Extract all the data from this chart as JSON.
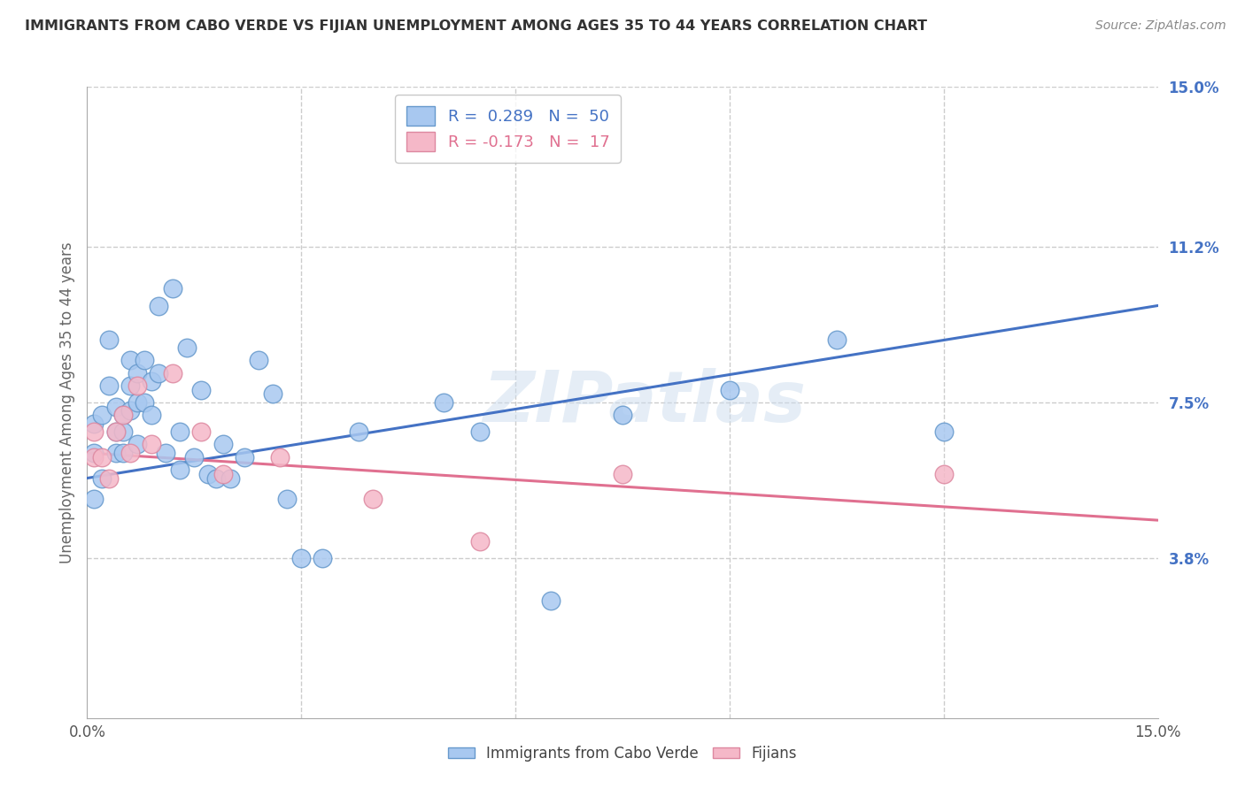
{
  "title": "IMMIGRANTS FROM CABO VERDE VS FIJIAN UNEMPLOYMENT AMONG AGES 35 TO 44 YEARS CORRELATION CHART",
  "source": "Source: ZipAtlas.com",
  "ylabel": "Unemployment Among Ages 35 to 44 years",
  "xlim": [
    0.0,
    0.15
  ],
  "ylim": [
    0.0,
    0.15
  ],
  "ytick_right_labels": [
    "3.8%",
    "7.5%",
    "11.2%",
    "15.0%"
  ],
  "ytick_right_positions": [
    0.038,
    0.075,
    0.112,
    0.15
  ],
  "blue_color": "#A8C8F0",
  "blue_edge_color": "#6699CC",
  "blue_line_color": "#4472C4",
  "pink_color": "#F5B8C8",
  "pink_edge_color": "#DD88A0",
  "pink_line_color": "#E07090",
  "background_color": "#FFFFFF",
  "grid_color": "#CCCCCC",
  "title_color": "#333333",
  "right_label_color": "#4472C4",
  "watermark": "ZIPatlas",
  "blue_line_x0": 0.0,
  "blue_line_y0": 0.057,
  "blue_line_x1": 0.15,
  "blue_line_y1": 0.098,
  "pink_line_x0": 0.0,
  "pink_line_y0": 0.063,
  "pink_line_x1": 0.15,
  "pink_line_y1": 0.047,
  "cabo_x": [
    0.001,
    0.001,
    0.001,
    0.002,
    0.002,
    0.003,
    0.003,
    0.004,
    0.004,
    0.004,
    0.005,
    0.005,
    0.005,
    0.006,
    0.006,
    0.006,
    0.007,
    0.007,
    0.007,
    0.008,
    0.008,
    0.009,
    0.009,
    0.01,
    0.01,
    0.011,
    0.012,
    0.013,
    0.013,
    0.014,
    0.015,
    0.016,
    0.017,
    0.018,
    0.019,
    0.02,
    0.022,
    0.024,
    0.026,
    0.028,
    0.03,
    0.033,
    0.038,
    0.05,
    0.055,
    0.065,
    0.075,
    0.09,
    0.105,
    0.12
  ],
  "cabo_y": [
    0.07,
    0.063,
    0.052,
    0.072,
    0.057,
    0.09,
    0.079,
    0.074,
    0.068,
    0.063,
    0.072,
    0.068,
    0.063,
    0.085,
    0.079,
    0.073,
    0.082,
    0.075,
    0.065,
    0.085,
    0.075,
    0.08,
    0.072,
    0.098,
    0.082,
    0.063,
    0.102,
    0.068,
    0.059,
    0.088,
    0.062,
    0.078,
    0.058,
    0.057,
    0.065,
    0.057,
    0.062,
    0.085,
    0.077,
    0.052,
    0.038,
    0.038,
    0.068,
    0.075,
    0.068,
    0.028,
    0.072,
    0.078,
    0.09,
    0.068
  ],
  "fijian_x": [
    0.001,
    0.001,
    0.002,
    0.003,
    0.004,
    0.005,
    0.006,
    0.007,
    0.009,
    0.012,
    0.016,
    0.019,
    0.027,
    0.04,
    0.055,
    0.075,
    0.12
  ],
  "fijian_y": [
    0.068,
    0.062,
    0.062,
    0.057,
    0.068,
    0.072,
    0.063,
    0.079,
    0.065,
    0.082,
    0.068,
    0.058,
    0.062,
    0.052,
    0.042,
    0.058,
    0.058
  ]
}
